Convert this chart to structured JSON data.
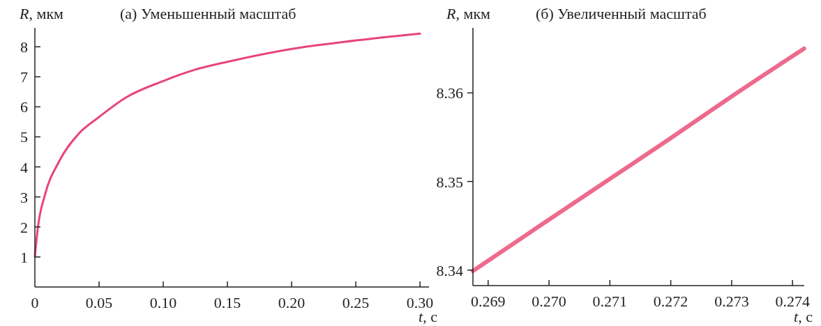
{
  "chart_data": [
    {
      "type": "line",
      "title": "(а) Уменьшенный масштаб",
      "xlabel": "t, с",
      "ylabel": "R, мкм",
      "series": [
        {
          "color": "#e8457a",
          "x": [
            0,
            0.0024,
            0.0078,
            0.0187,
            0.034,
            0.05,
            0.0709,
            0.1,
            0.125,
            0.15,
            0.2,
            0.25,
            0.3
          ],
          "values": [
            1.02,
            2.0,
            3.06,
            4.17,
            5.1,
            5.66,
            6.31,
            6.86,
            7.24,
            7.5,
            7.93,
            8.21,
            8.44
          ]
        }
      ],
      "xlim": [
        0,
        0.307
      ],
      "ylim": [
        0,
        8.63
      ],
      "xticks": [
        0,
        0.05,
        {
          "value": 0.1,
          "label": "0.10"
        },
        0.15,
        {
          "value": 0.2,
          "label": "0.20"
        },
        0.25,
        {
          "value": 0.3,
          "label": "0.30"
        }
      ],
      "yticks": [
        1,
        2,
        3,
        4,
        5,
        6,
        7,
        8
      ],
      "grid": false
    },
    {
      "type": "line",
      "title": "(б) Увеличенный масштаб",
      "xlabel": "t, с",
      "ylabel": "R, мкм",
      "series": [
        {
          "color": "#ee6a8c",
          "x": [
            0.26875,
            0.27,
            0.271,
            0.272,
            0.273,
            0.27419
          ],
          "values": [
            8.3399,
            8.3457,
            8.3503,
            8.3549,
            8.3596,
            8.365
          ]
        }
      ],
      "xlim": [
        0.26875,
        0.274193
      ],
      "ylim": [
        8.33825,
        8.36734
      ],
      "xticks": [
        0.269,
        {
          "value": 0.27,
          "label": "0.270"
        },
        0.271,
        0.272,
        0.273,
        0.274
      ],
      "yticks": [
        8.34,
        8.35,
        8.36
      ],
      "grid": false
    }
  ]
}
